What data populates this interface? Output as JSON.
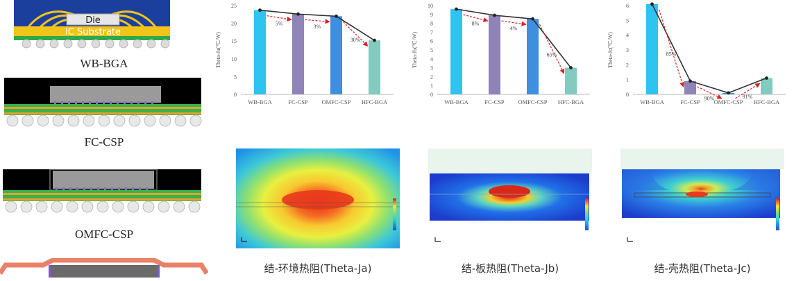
{
  "packages": {
    "die_label": "Die",
    "substrate_label": "IC Substrate",
    "labels": [
      "WB-BGA",
      "FC-CSP",
      "OMFC-CSP"
    ]
  },
  "colors": {
    "bar_wb": "#2ec4f0",
    "bar_fc": "#8e84b8",
    "bar_omfc": "#3f8fe0",
    "bar_hfc": "#84cbbf",
    "trend_line": "#333333",
    "arrow": "#e02020"
  },
  "chart_data": [
    {
      "type": "bar",
      "ylabel": "Theta-Ja(℃/W)",
      "categories": [
        "WB-BGA",
        "FC-CSP",
        "OMFC-CSP",
        "HFC-BGA"
      ],
      "values": [
        23.7,
        22.6,
        22.0,
        15.2
      ],
      "ylim": [
        0,
        25
      ],
      "yticks": [
        0,
        5,
        10,
        15,
        20,
        25
      ],
      "annotations": [
        "5%",
        "3%",
        "30%"
      ]
    },
    {
      "type": "bar",
      "ylabel": "Theta-Jb(℃/W)",
      "categories": [
        "WB-BGA",
        "FC-CSP",
        "OMFC-CSP",
        "HFC-BGA"
      ],
      "values": [
        9.6,
        8.9,
        8.5,
        3.0
      ],
      "ylim": [
        0,
        10
      ],
      "yticks": [
        0,
        1,
        2,
        3,
        4,
        5,
        6,
        7,
        8,
        9,
        10
      ],
      "annotations": [
        "8%",
        "4%",
        "65%"
      ]
    },
    {
      "type": "bar",
      "ylabel": "Theta-Jc(℃/W)",
      "categories": [
        "WB-BGA",
        "FC-CSP",
        "OMFC-CSP",
        "HFC-BGA"
      ],
      "values": [
        6.1,
        0.9,
        0.1,
        1.1
      ],
      "ylim": [
        0,
        6
      ],
      "yticks": [
        0,
        1,
        2,
        3,
        4,
        5,
        6
      ],
      "annotations": [
        "85%",
        "90%",
        "91%"
      ]
    }
  ],
  "captions": [
    "结-环境热阻(Theta-Ja)",
    "结-板热阻(Theta-Jb)",
    "结-壳热阻(Theta-Jc)"
  ]
}
